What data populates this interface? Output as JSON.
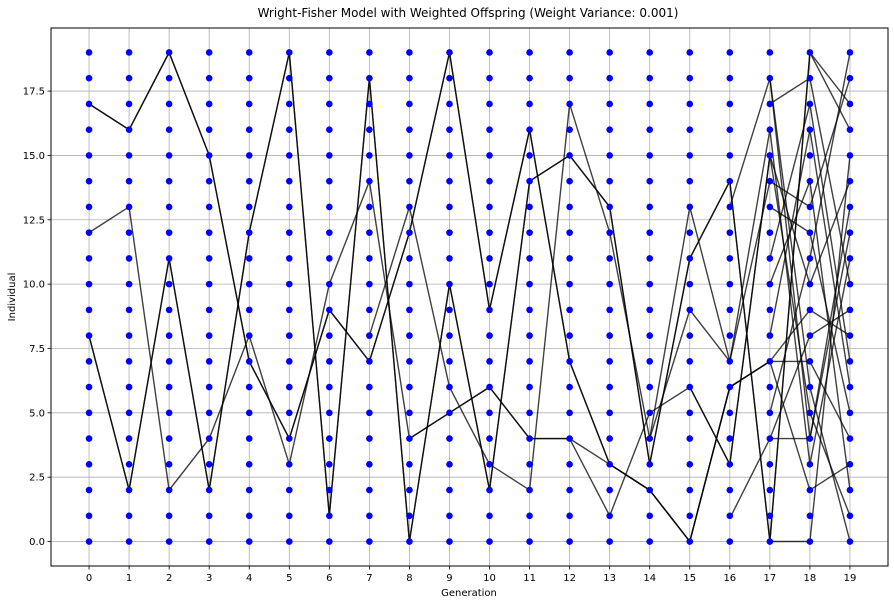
{
  "chart_data": {
    "type": "scatter",
    "title": "Wright-Fisher Model with Weighted Offspring (Weight Variance: 0.001)",
    "xlabel": "Generation",
    "ylabel": "Individual",
    "xlim": [
      -0.95,
      19.95
    ],
    "ylim": [
      -0.95,
      19.95
    ],
    "x_ticks": [
      0,
      1,
      2,
      3,
      4,
      5,
      6,
      7,
      8,
      9,
      10,
      11,
      12,
      13,
      14,
      15,
      16,
      17,
      18,
      19
    ],
    "x_tick_labels": [
      "0",
      "1",
      "2",
      "3",
      "4",
      "5",
      "6",
      "7",
      "8",
      "9",
      "10",
      "11",
      "12",
      "13",
      "14",
      "15",
      "16",
      "17",
      "18",
      "19"
    ],
    "y_ticks": [
      0,
      2.5,
      5,
      7.5,
      10,
      12.5,
      15,
      17.5
    ],
    "y_tick_labels": [
      "0.0",
      "2.5",
      "5.0",
      "7.5",
      "10.0",
      "12.5",
      "15.0",
      "17.5"
    ],
    "grid": true,
    "point_color": "#0000ff",
    "line_color": "#000000",
    "points": {
      "generations": [
        0,
        1,
        2,
        3,
        4,
        5,
        6,
        7,
        8,
        9,
        10,
        11,
        12,
        13,
        14,
        15,
        16,
        17,
        18,
        19
      ],
      "individuals": [
        0,
        1,
        2,
        3,
        4,
        5,
        6,
        7,
        8,
        9,
        10,
        11,
        12,
        13,
        14,
        15,
        16,
        17,
        18,
        19
      ]
    },
    "lineage_paths": [
      [
        [
          0,
          17
        ],
        [
          1,
          16
        ],
        [
          2,
          19
        ],
        [
          3,
          15
        ],
        [
          4,
          7
        ],
        [
          5,
          4
        ],
        [
          6,
          9
        ],
        [
          7,
          7
        ],
        [
          8,
          12
        ],
        [
          9,
          19
        ],
        [
          10,
          9
        ],
        [
          11,
          16
        ],
        [
          12,
          7
        ],
        [
          13,
          3
        ],
        [
          14,
          2
        ],
        [
          15,
          0
        ],
        [
          16,
          6
        ],
        [
          17,
          7
        ],
        [
          18,
          7
        ],
        [
          19,
          4
        ]
      ],
      [
        [
          0,
          17
        ],
        [
          1,
          16
        ],
        [
          2,
          19
        ],
        [
          3,
          15
        ],
        [
          4,
          7
        ],
        [
          5,
          4
        ],
        [
          6,
          9
        ],
        [
          7,
          7
        ],
        [
          8,
          12
        ],
        [
          9,
          19
        ],
        [
          10,
          9
        ],
        [
          11,
          16
        ],
        [
          12,
          7
        ],
        [
          13,
          3
        ],
        [
          14,
          2
        ],
        [
          15,
          0
        ],
        [
          16,
          6
        ],
        [
          17,
          7
        ],
        [
          18,
          9
        ],
        [
          19,
          8
        ]
      ],
      [
        [
          0,
          12
        ],
        [
          1,
          13
        ],
        [
          2,
          2
        ],
        [
          3,
          4
        ],
        [
          4,
          8
        ],
        [
          5,
          3
        ],
        [
          6,
          10
        ],
        [
          7,
          14
        ],
        [
          8,
          4
        ],
        [
          9,
          5
        ],
        [
          10,
          6
        ],
        [
          11,
          4
        ],
        [
          12,
          4
        ],
        [
          13,
          1
        ],
        [
          14,
          5
        ],
        [
          15,
          6
        ],
        [
          16,
          3
        ],
        [
          17,
          15
        ],
        [
          18,
          5
        ],
        [
          19,
          1
        ]
      ],
      [
        [
          0,
          8
        ],
        [
          1,
          2
        ],
        [
          2,
          11
        ],
        [
          3,
          2
        ],
        [
          4,
          12
        ],
        [
          5,
          19
        ],
        [
          6,
          1
        ],
        [
          7,
          18
        ],
        [
          8,
          0
        ],
        [
          9,
          10
        ],
        [
          10,
          2
        ],
        [
          11,
          14
        ],
        [
          12,
          15
        ],
        [
          13,
          13
        ],
        [
          14,
          3
        ],
        [
          15,
          11
        ],
        [
          16,
          14
        ],
        [
          17,
          0
        ],
        [
          18,
          19
        ],
        [
          19,
          17
        ]
      ],
      [
        [
          0,
          8
        ],
        [
          1,
          2
        ],
        [
          2,
          11
        ],
        [
          3,
          2
        ],
        [
          4,
          12
        ],
        [
          5,
          19
        ],
        [
          6,
          1
        ],
        [
          7,
          18
        ],
        [
          8,
          0
        ],
        [
          9,
          10
        ],
        [
          10,
          2
        ],
        [
          11,
          14
        ],
        [
          12,
          15
        ],
        [
          13,
          13
        ],
        [
          14,
          3
        ],
        [
          15,
          11
        ],
        [
          16,
          14
        ],
        [
          17,
          0
        ],
        [
          18,
          19
        ],
        [
          19,
          16
        ]
      ],
      [
        [
          7,
          8
        ],
        [
          8,
          13
        ],
        [
          9,
          6
        ],
        [
          10,
          3
        ],
        [
          11,
          2
        ],
        [
          12,
          17
        ],
        [
          13,
          12
        ],
        [
          14,
          4
        ],
        [
          15,
          13
        ],
        [
          16,
          7
        ],
        [
          17,
          14
        ],
        [
          18,
          13
        ],
        [
          19,
          18
        ]
      ],
      [
        [
          8,
          4
        ],
        [
          9,
          5
        ],
        [
          10,
          6
        ],
        [
          11,
          4
        ],
        [
          12,
          4
        ],
        [
          13,
          3
        ],
        [
          14,
          2
        ],
        [
          15,
          0
        ],
        [
          16,
          6
        ],
        [
          17,
          7
        ],
        [
          18,
          2
        ],
        [
          19,
          3
        ]
      ],
      [
        [
          14,
          4
        ],
        [
          15,
          9
        ],
        [
          16,
          7
        ],
        [
          17,
          16
        ],
        [
          18,
          3
        ],
        [
          19,
          11
        ]
      ],
      [
        [
          15,
          6
        ],
        [
          16,
          3
        ],
        [
          17,
          15
        ],
        [
          18,
          10
        ],
        [
          19,
          14
        ]
      ],
      [
        [
          16,
          13
        ],
        [
          17,
          18
        ],
        [
          18,
          4
        ],
        [
          19,
          12
        ]
      ],
      [
        [
          16,
          0.9
        ],
        [
          17,
          4
        ],
        [
          18,
          8
        ],
        [
          19,
          9
        ]
      ],
      [
        [
          17,
          4
        ],
        [
          18,
          4
        ],
        [
          19,
          13
        ]
      ],
      [
        [
          17,
          17
        ],
        [
          18,
          18
        ],
        [
          19,
          10
        ]
      ],
      [
        [
          17,
          8
        ],
        [
          18,
          16
        ],
        [
          19,
          6
        ]
      ],
      [
        [
          17,
          0
        ],
        [
          18,
          0
        ],
        [
          19,
          15
        ]
      ],
      [
        [
          17,
          18
        ],
        [
          18,
          6
        ],
        [
          19,
          0
        ]
      ],
      [
        [
          17,
          13
        ],
        [
          18,
          12
        ],
        [
          19,
          5
        ]
      ],
      [
        [
          17,
          11
        ],
        [
          18,
          17
        ],
        [
          19,
          7
        ]
      ],
      [
        [
          17,
          5
        ],
        [
          18,
          11
        ],
        [
          19,
          19
        ]
      ],
      [
        [
          17,
          10
        ],
        [
          18,
          14
        ],
        [
          19,
          2
        ]
      ]
    ]
  }
}
